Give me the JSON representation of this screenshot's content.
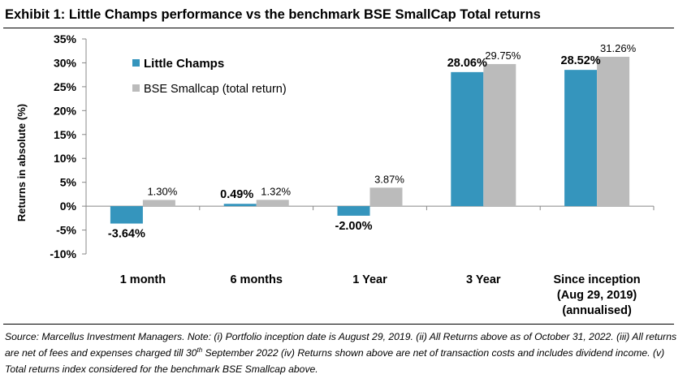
{
  "header": {
    "title": "Exhibit 1: Little Champs performance vs the benchmark BSE SmallCap Total returns"
  },
  "chart_data": {
    "type": "bar",
    "title": "Exhibit 1: Little Champs performance vs the benchmark BSE SmallCap Total returns",
    "xlabel": "",
    "ylabel": "Returns in absolute (%)",
    "ylim": [
      -10,
      35
    ],
    "yticks": [
      -10,
      -5,
      0,
      5,
      10,
      15,
      20,
      25,
      30,
      35
    ],
    "ytick_labels": [
      "-10%",
      "-5%",
      "0%",
      "5%",
      "10%",
      "15%",
      "20%",
      "25%",
      "30%",
      "35%"
    ],
    "categories": [
      "1 month",
      "6 months",
      "1 Year",
      "3 Year",
      "Since inception\n(Aug 29, 2019)\n(annualised)"
    ],
    "series": [
      {
        "name": "Little Champs",
        "color": "#3595BD",
        "values": [
          -3.64,
          0.49,
          -2.0,
          28.06,
          28.52
        ],
        "labels": [
          "-3.64%",
          "0.49%",
          "-2.00%",
          "28.06%",
          "28.52%"
        ],
        "label_style": "bold"
      },
      {
        "name": "BSE Smallcap (total return)",
        "color": "#BBBBBB",
        "values": [
          1.3,
          1.32,
          3.87,
          29.75,
          31.26
        ],
        "labels": [
          "1.30%",
          "1.32%",
          "3.87%",
          "29.75%",
          "31.26%"
        ],
        "label_style": "normal"
      }
    ],
    "legend": "top-left",
    "grid": false
  },
  "footer": {
    "source_before_sup": "Source: Marcellus Investment Managers. Note: (i) Portfolio inception date is August 29, 2019. (ii) All Returns above as of October 31, 2022. (iii) All returns are net of fees and expenses charged till 30",
    "source_sup": "th",
    "source_after_sup": " September 2022 (iv) Returns shown above are net of transaction costs and includes dividend income. (v) Total returns index considered for the benchmark BSE Smallcap above."
  }
}
